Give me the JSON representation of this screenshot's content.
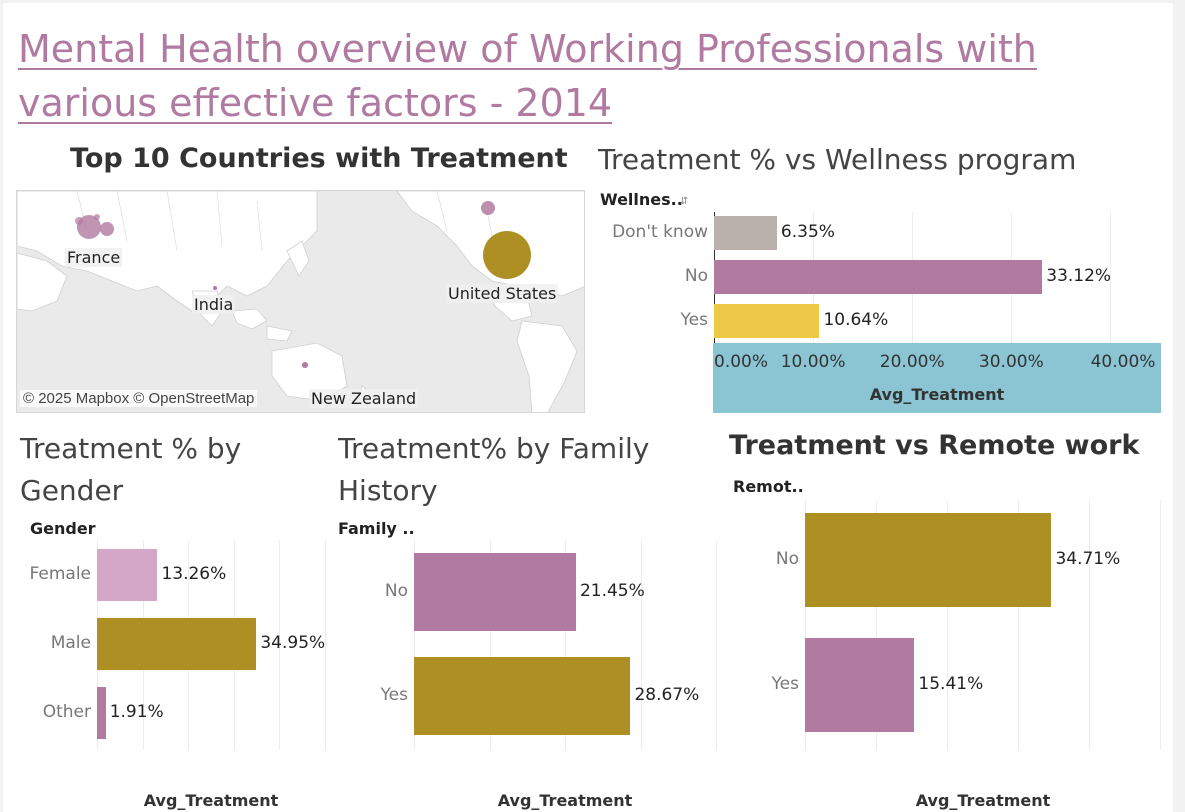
{
  "dashboard": {
    "title": "Mental Health overview of Working Professionals with various effective factors - 2014"
  },
  "colors": {
    "pink": "#b07aa1",
    "light_pink": "#d4a6c8",
    "olive": "#ad8f23",
    "yellow": "#edc948",
    "gray": "#bab0ac",
    "band": "#8bc4d3"
  },
  "map": {
    "title": "Top 10 Countries with Treatment",
    "labels": [
      "France",
      "India",
      "United States",
      "New Zealand"
    ],
    "attribution": "© 2025 Mapbox © OpenStreetMap"
  },
  "chart_data": [
    {
      "type": "bar",
      "title": "Treatment % vs Wellness program",
      "row_header": "Wellnes..",
      "xlabel": "Avg_Treatment",
      "categories": [
        "Don't know",
        "No",
        "Yes"
      ],
      "values": [
        6.35,
        33.12,
        10.64
      ],
      "value_labels": [
        "6.35%",
        "33.12%",
        "10.64%"
      ],
      "colors": [
        "#bab0ac",
        "#b07aa1",
        "#edc948"
      ],
      "xlim": [
        0,
        45
      ],
      "ticks": [
        "0.00%",
        "10.00%",
        "20.00%",
        "30.00%",
        "40.00%"
      ]
    },
    {
      "type": "bar",
      "title": "Treatment % by Gender",
      "row_header": "Gender",
      "xlabel": "Avg_Treatment",
      "categories": [
        "Female",
        "Male",
        "Other"
      ],
      "values": [
        13.26,
        34.95,
        1.91
      ],
      "value_labels": [
        "13.26%",
        "34.95%",
        "1.91%"
      ],
      "colors": [
        "#d4a6c8",
        "#ad8f23",
        "#b07aa1"
      ],
      "xlim": [
        0,
        50
      ]
    },
    {
      "type": "bar",
      "title": "Treatment%  by Family History",
      "row_header": "Family ..",
      "xlabel": "Avg_Treatment",
      "categories": [
        "No",
        "Yes"
      ],
      "values": [
        21.45,
        28.67
      ],
      "value_labels": [
        "21.45%",
        "28.67%"
      ],
      "colors": [
        "#b07aa1",
        "#ad8f23"
      ],
      "xlim": [
        0,
        40
      ]
    },
    {
      "type": "bar",
      "title": "Treatment vs Remote work",
      "row_header": "Remot..",
      "xlabel": "Avg_Treatment",
      "categories": [
        "No",
        "Yes"
      ],
      "values": [
        34.71,
        15.41
      ],
      "value_labels": [
        "34.71%",
        "15.41%"
      ],
      "colors": [
        "#ad8f23",
        "#b07aa1"
      ],
      "xlim": [
        0,
        50
      ]
    }
  ]
}
